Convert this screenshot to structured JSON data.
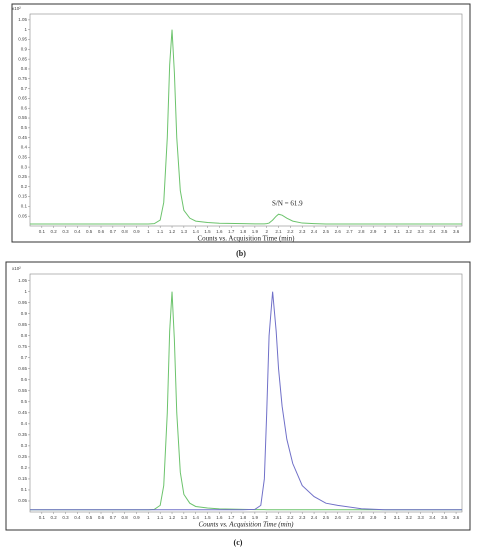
{
  "chart_data": [
    {
      "type": "line",
      "caption": "(b)",
      "y_axis_label": "x10²",
      "x_label": "Counts vs. Acquisition Time (min)",
      "annotation": "S/N = 61.9",
      "xlim": [
        0,
        3.65
      ],
      "ylim": [
        0,
        1.08
      ],
      "xticks": [
        0.1,
        0.2,
        0.3,
        0.4,
        0.5,
        0.6,
        0.7,
        0.8,
        0.9,
        1,
        1.1,
        1.2,
        1.3,
        1.4,
        1.5,
        1.6,
        1.7,
        1.8,
        1.9,
        2,
        2.1,
        2.2,
        2.3,
        2.4,
        2.5,
        2.6,
        2.7,
        2.8,
        2.9,
        3,
        3.1,
        3.2,
        3.3,
        3.4,
        3.5,
        3.6
      ],
      "yticks": [
        0.05,
        0.1,
        0.15,
        0.2,
        0.25,
        0.3,
        0.35,
        0.4,
        0.45,
        0.5,
        0.55,
        0.6,
        0.65,
        0.7,
        0.75,
        0.8,
        0.85,
        0.9,
        0.95,
        1,
        1.05
      ],
      "x": [
        0,
        0.2,
        0.4,
        0.6,
        0.8,
        1.0,
        1.05,
        1.1,
        1.13,
        1.16,
        1.18,
        1.2,
        1.22,
        1.24,
        1.27,
        1.3,
        1.35,
        1.4,
        1.5,
        1.6,
        1.8,
        1.9,
        1.95,
        1.98,
        2.0,
        2.02,
        2.05,
        2.08,
        2.1,
        2.13,
        2.17,
        2.22,
        2.3,
        2.4,
        2.5,
        2.6,
        2.8,
        3.0,
        3.3,
        3.65
      ],
      "series": [
        {
          "color": "#6cc36c",
          "values": [
            0.01,
            0.01,
            0.01,
            0.01,
            0.01,
            0.01,
            0.012,
            0.03,
            0.12,
            0.45,
            0.82,
            1.0,
            0.78,
            0.45,
            0.18,
            0.08,
            0.04,
            0.025,
            0.018,
            0.014,
            0.012,
            0.011,
            0.011,
            0.011,
            0.012,
            0.015,
            0.03,
            0.05,
            0.06,
            0.055,
            0.04,
            0.025,
            0.015,
            0.012,
            0.01,
            0.01,
            0.01,
            0.01,
            0.01,
            0.01
          ]
        }
      ]
    },
    {
      "type": "line",
      "caption": "(c)",
      "y_axis_label": "x10²",
      "x_label": "Counts vs. Acquisition Time (min)",
      "xlim": [
        0,
        3.65
      ],
      "ylim": [
        0,
        1.08
      ],
      "xticks": [
        0.1,
        0.2,
        0.3,
        0.4,
        0.5,
        0.6,
        0.7,
        0.8,
        0.9,
        1,
        1.1,
        1.2,
        1.3,
        1.4,
        1.5,
        1.6,
        1.7,
        1.8,
        1.9,
        2,
        2.1,
        2.2,
        2.3,
        2.4,
        2.5,
        2.6,
        2.7,
        2.8,
        2.9,
        3,
        3.1,
        3.2,
        3.3,
        3.4,
        3.5,
        3.6
      ],
      "yticks": [
        0.05,
        0.1,
        0.15,
        0.2,
        0.25,
        0.3,
        0.35,
        0.4,
        0.45,
        0.5,
        0.55,
        0.6,
        0.65,
        0.7,
        0.75,
        0.8,
        0.85,
        0.9,
        0.95,
        1,
        1.05
      ],
      "x": [
        0,
        0.2,
        0.4,
        0.6,
        0.8,
        1.0,
        1.05,
        1.1,
        1.13,
        1.16,
        1.18,
        1.2,
        1.22,
        1.24,
        1.27,
        1.3,
        1.35,
        1.4,
        1.5,
        1.6,
        1.8,
        1.9,
        1.95,
        1.98,
        2.0,
        2.02,
        2.05,
        2.08,
        2.1,
        2.13,
        2.17,
        2.22,
        2.3,
        2.4,
        2.5,
        2.6,
        2.8,
        3.0,
        3.3,
        3.65
      ],
      "series": [
        {
          "color": "#6cc36c",
          "values": [
            0.01,
            0.01,
            0.01,
            0.01,
            0.01,
            0.01,
            0.012,
            0.03,
            0.12,
            0.45,
            0.82,
            1.0,
            0.78,
            0.45,
            0.18,
            0.08,
            0.04,
            0.025,
            0.018,
            0.014,
            0.012,
            0.011,
            0.011,
            0.011,
            0.01,
            0.01,
            0.01,
            0.01,
            0.01,
            0.01,
            0.01,
            0.01,
            0.01,
            0.01,
            0.01,
            0.01,
            0.01,
            0.01,
            0.01,
            0.01
          ]
        },
        {
          "color": "#7070c8",
          "values": [
            0.01,
            0.01,
            0.01,
            0.01,
            0.01,
            0.01,
            0.01,
            0.01,
            0.01,
            0.01,
            0.01,
            0.01,
            0.01,
            0.01,
            0.01,
            0.01,
            0.01,
            0.01,
            0.01,
            0.01,
            0.01,
            0.012,
            0.03,
            0.15,
            0.45,
            0.8,
            1.0,
            0.82,
            0.65,
            0.48,
            0.33,
            0.22,
            0.12,
            0.07,
            0.04,
            0.03,
            0.015,
            0.01,
            0.01,
            0.01
          ]
        }
      ]
    }
  ]
}
